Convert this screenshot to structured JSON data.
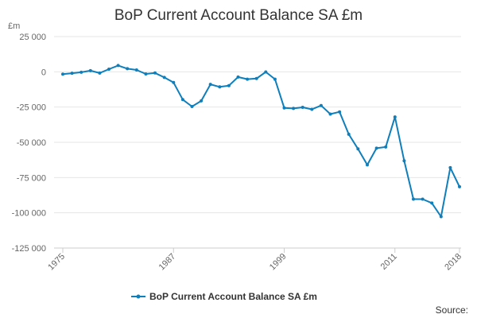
{
  "chart_data": {
    "type": "line",
    "title": "BoP Current Account Balance SA £m",
    "unit_label": "£m",
    "ylim": [
      -125000,
      25000
    ],
    "y_ticks": [
      25000,
      0,
      -25000,
      -50000,
      -75000,
      -100000,
      -125000
    ],
    "y_tick_labels": [
      "25 000",
      "0",
      "-25 000",
      "-50 000",
      "-75 000",
      "-100 000",
      "-125 000"
    ],
    "x_ticks": [
      1975,
      1987,
      1999,
      2011,
      2018
    ],
    "x_tick_labels": [
      "1975",
      "1987",
      "1999",
      "2011",
      "2018"
    ],
    "grid": true,
    "legend_position": "bottom",
    "series": [
      {
        "name": "BoP Current Account Balance SA £m",
        "color": "#0f7fbc",
        "x": [
          1975,
          1976,
          1977,
          1978,
          1979,
          1980,
          1981,
          1982,
          1983,
          1984,
          1985,
          1986,
          1987,
          1988,
          1989,
          1990,
          1991,
          1992,
          1993,
          1994,
          1995,
          1996,
          1997,
          1998,
          1999,
          2000,
          2001,
          2002,
          2003,
          2004,
          2005,
          2006,
          2007,
          2008,
          2009,
          2010,
          2011,
          2012,
          2013,
          2014,
          2015,
          2016,
          2017,
          2018
        ],
        "values": [
          -1700,
          -1000,
          -300,
          800,
          -900,
          1900,
          4500,
          2200,
          1300,
          -1500,
          -800,
          -4000,
          -7600,
          -19700,
          -24600,
          -20600,
          -8900,
          -10700,
          -9800,
          -3700,
          -5200,
          -4800,
          -100,
          -5200,
          -25600,
          -26000,
          -25200,
          -26600,
          -23900,
          -30000,
          -28400,
          -44300,
          -54700,
          -66000,
          -54200,
          -53300,
          -32000,
          -63100,
          -90300,
          -90300,
          -93100,
          -102700,
          -68000,
          -81500
        ]
      }
    ],
    "source": "Source:"
  }
}
